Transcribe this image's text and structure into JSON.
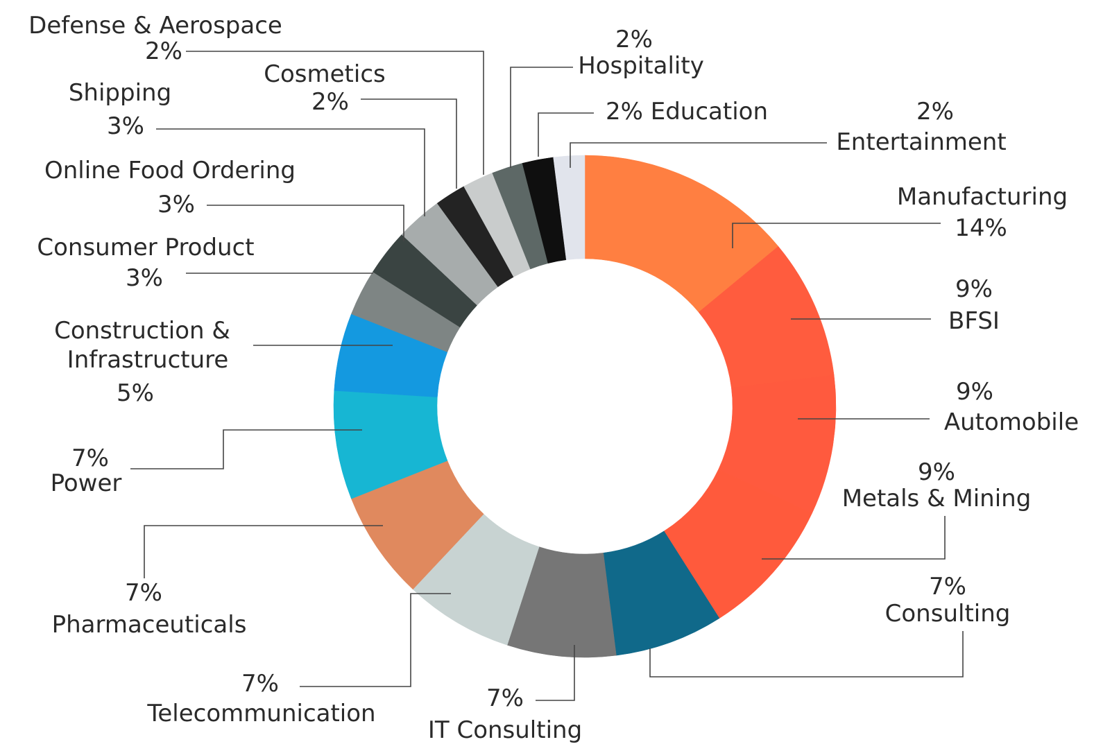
{
  "chart_data": {
    "type": "pie",
    "variant": "donut",
    "title": "",
    "slices": [
      {
        "name": "Manufacturing",
        "value": 14,
        "label": "14%",
        "color": "#FF7F41"
      },
      {
        "name": "BFSI",
        "value": 9,
        "label": "9%",
        "color": "#FF5C3E"
      },
      {
        "name": "Automobile",
        "value": 9,
        "label": "9%",
        "color": "#FF5A3E"
      },
      {
        "name": "Metals & Mining",
        "value": 9,
        "label": "9%",
        "color": "#FF5A3C"
      },
      {
        "name": "Consulting",
        "value": 7,
        "label": "7%",
        "color": "#10698A"
      },
      {
        "name": "IT Consulting",
        "value": 7,
        "label": "7%",
        "color": "#767676"
      },
      {
        "name": "Telecommunication",
        "value": 7,
        "label": "7%",
        "color": "#C8D3D2"
      },
      {
        "name": "Pharmaceuticals",
        "value": 7,
        "label": "7%",
        "color": "#E0895E"
      },
      {
        "name": "Power",
        "value": 7,
        "label": "7%",
        "color": "#17B6D3"
      },
      {
        "name": "Construction & Infrastructure",
        "value": 5,
        "label": "5%",
        "color": "#1499E0"
      },
      {
        "name": "Consumer Product",
        "value": 3,
        "label": "3%",
        "color": "#7E8584"
      },
      {
        "name": "Online Food Ordering",
        "value": 3,
        "label": "3%",
        "color": "#3A4442"
      },
      {
        "name": "Shipping",
        "value": 3,
        "label": "3%",
        "color": "#A7ACAC"
      },
      {
        "name": "Cosmetics",
        "value": 2,
        "label": "2%",
        "color": "#232323"
      },
      {
        "name": "Defense & Aerospace",
        "value": 2,
        "label": "2%",
        "color": "#C9CCCC"
      },
      {
        "name": "Hospitality",
        "value": 2,
        "label": "2%",
        "color": "#5D6866"
      },
      {
        "name": "Education",
        "value": 2,
        "label": "2%",
        "color": "#0F0F0F"
      },
      {
        "name": "Entertainment",
        "value": 2,
        "label": "2%",
        "color": "#E1E4EC"
      }
    ]
  }
}
